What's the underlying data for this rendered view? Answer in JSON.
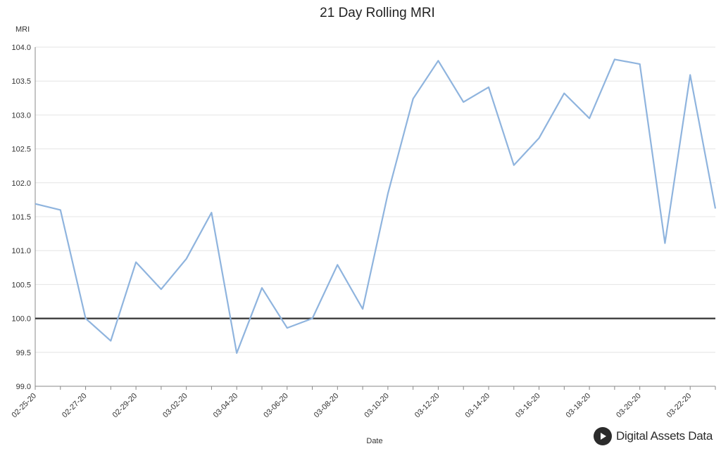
{
  "chart_data": {
    "type": "line",
    "title": "21 Day Rolling MRI",
    "ylabel": "MRI",
    "xlabel": "Date",
    "ylim": [
      99.0,
      104.0
    ],
    "yticks": [
      "99.0",
      "99.5",
      "100.0",
      "100.5",
      "101.0",
      "101.5",
      "102.0",
      "102.5",
      "103.0",
      "103.5",
      "104.0"
    ],
    "reference_line": 100.0,
    "x": [
      "02-25-20",
      "02-26-20",
      "02-27-20",
      "02-28-20",
      "02-29-20",
      "03-01-20",
      "03-02-20",
      "03-03-20",
      "03-04-20",
      "03-05-20",
      "03-06-20",
      "03-07-20",
      "03-08-20",
      "03-09-20",
      "03-10-20",
      "03-11-20",
      "03-12-20",
      "03-13-20",
      "03-14-20",
      "03-15-20",
      "03-16-20",
      "03-17-20",
      "03-18-20",
      "03-19-20",
      "03-20-20",
      "03-21-20",
      "03-22-20",
      "03-23-20"
    ],
    "xtick_labels": [
      "02-25-20",
      "02-27-20",
      "02-29-20",
      "03-02-20",
      "03-04-20",
      "03-06-20",
      "03-08-20",
      "03-10-20",
      "03-12-20",
      "03-14-20",
      "03-16-20",
      "03-18-20",
      "03-20-20",
      "03-22-20"
    ],
    "series": [
      {
        "values": [
          101.69,
          101.6,
          100.0,
          99.67,
          100.83,
          100.43,
          100.88,
          101.56,
          99.49,
          100.45,
          99.86,
          100.0,
          100.79,
          100.14,
          101.84,
          103.24,
          103.8,
          103.19,
          103.41,
          102.26,
          102.66,
          103.32,
          102.95,
          103.82,
          103.75,
          101.11,
          103.59,
          101.62
        ]
      }
    ],
    "series_color": "#8fb4de",
    "reference_color": "#333333",
    "grid": true
  },
  "brand": {
    "text": "Digital Assets Data",
    "icon": "play-circle-icon"
  }
}
